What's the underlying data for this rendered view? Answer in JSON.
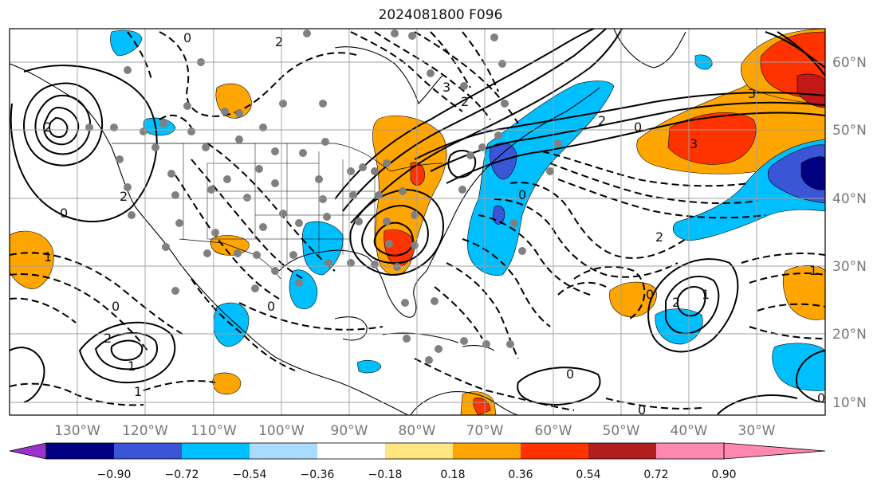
{
  "title": "2024081800 F096",
  "map": {
    "lon_labels": [
      "130°W",
      "120°W",
      "110°W",
      "100°W",
      "90°W",
      "80°W",
      "70°W",
      "60°W",
      "50°W",
      "40°W",
      "30°W"
    ],
    "lat_labels": [
      "60°N",
      "50°N",
      "40°N",
      "30°N",
      "20°N",
      "10°N"
    ],
    "contour_labels": [
      "0",
      "2",
      "3",
      "2",
      "0",
      "3",
      "3",
      "2",
      "2",
      "2",
      "1",
      "0",
      "1",
      "2",
      "0",
      "1",
      "0",
      "1",
      "0",
      "0",
      "0",
      "2",
      "1",
      "2",
      "0",
      "0"
    ],
    "colors": {
      "shade_orange": "#ffa500",
      "shade_red": "#ff3300",
      "shade_darkred": "#c21818",
      "shade_cyan": "#00bfff",
      "shade_blue": "#3a55d6",
      "shade_navy": "#000080",
      "stations": "#808080"
    }
  },
  "colorbar": {
    "ticks": [
      "−0.90",
      "−0.72",
      "−0.54",
      "−0.36",
      "−0.18",
      "0.18",
      "0.36",
      "0.54",
      "0.72",
      "0.90"
    ],
    "colors": [
      "#9933cc",
      "#000080",
      "#3a55d6",
      "#00bfff",
      "#aadcff",
      "#ffffff",
      "#ffe680",
      "#ffa500",
      "#ff3300",
      "#b01e1e",
      "#ff88b0"
    ]
  }
}
